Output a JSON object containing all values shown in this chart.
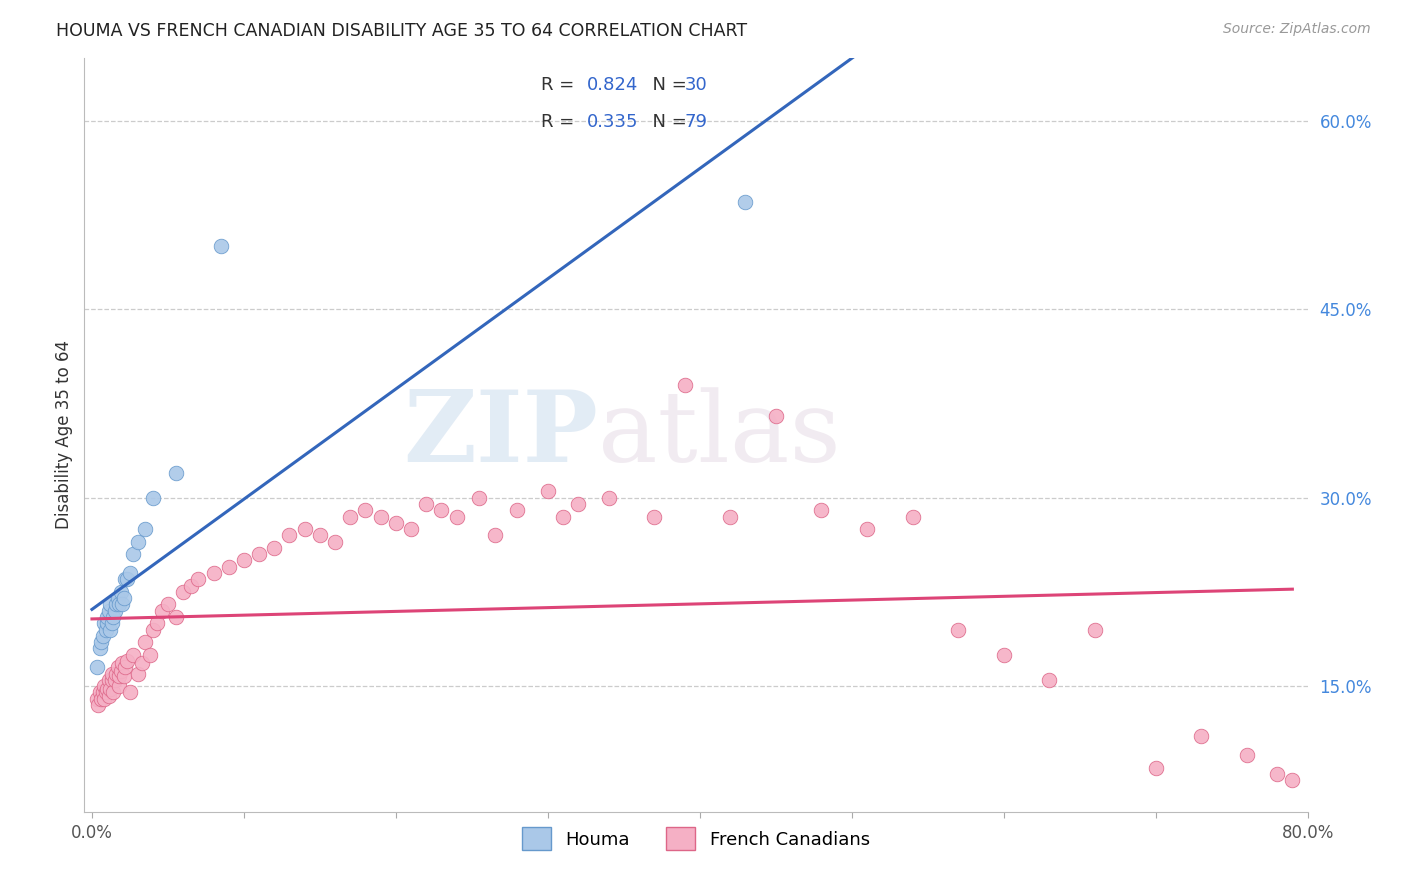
{
  "title": "HOUMA VS FRENCH CANADIAN DISABILITY AGE 35 TO 64 CORRELATION CHART",
  "source": "Source: ZipAtlas.com",
  "ylabel": "Disability Age 35 to 64",
  "xlim": [
    -0.005,
    0.8
  ],
  "ylim": [
    0.05,
    0.65
  ],
  "yticks_right": [
    0.15,
    0.3,
    0.45,
    0.6
  ],
  "ytick_labels_right": [
    "15.0%",
    "30.0%",
    "45.0%",
    "60.0%"
  ],
  "houma_R": 0.824,
  "houma_N": 30,
  "fc_R": 0.335,
  "fc_N": 79,
  "houma_color": "#aac8e8",
  "houma_edge_color": "#6699cc",
  "houma_line_color": "#3366bb",
  "fc_color": "#f5b0c5",
  "fc_edge_color": "#dd6688",
  "fc_line_color": "#dd4477",
  "legend_label_houma": "Houma",
  "legend_label_fc": "French Canadians",
  "watermark_zip": "ZIP",
  "watermark_atlas": "atlas",
  "r_color": "#3366cc",
  "text_color": "#333333",
  "houma_x": [
    0.003,
    0.005,
    0.006,
    0.007,
    0.008,
    0.009,
    0.01,
    0.01,
    0.011,
    0.012,
    0.012,
    0.013,
    0.014,
    0.015,
    0.016,
    0.017,
    0.018,
    0.019,
    0.02,
    0.021,
    0.022,
    0.023,
    0.025,
    0.027,
    0.03,
    0.035,
    0.04,
    0.055,
    0.085,
    0.43
  ],
  "houma_y": [
    0.165,
    0.18,
    0.185,
    0.19,
    0.2,
    0.195,
    0.2,
    0.205,
    0.21,
    0.215,
    0.195,
    0.2,
    0.205,
    0.21,
    0.215,
    0.22,
    0.215,
    0.225,
    0.215,
    0.22,
    0.235,
    0.235,
    0.24,
    0.255,
    0.265,
    0.275,
    0.3,
    0.32,
    0.5,
    0.535
  ],
  "fc_x": [
    0.003,
    0.004,
    0.005,
    0.006,
    0.007,
    0.008,
    0.008,
    0.009,
    0.01,
    0.011,
    0.011,
    0.012,
    0.013,
    0.013,
    0.014,
    0.015,
    0.016,
    0.017,
    0.018,
    0.018,
    0.019,
    0.02,
    0.021,
    0.022,
    0.023,
    0.025,
    0.027,
    0.03,
    0.033,
    0.035,
    0.038,
    0.04,
    0.043,
    0.046,
    0.05,
    0.055,
    0.06,
    0.065,
    0.07,
    0.08,
    0.09,
    0.1,
    0.11,
    0.12,
    0.13,
    0.14,
    0.15,
    0.16,
    0.17,
    0.18,
    0.19,
    0.2,
    0.21,
    0.22,
    0.23,
    0.24,
    0.255,
    0.265,
    0.28,
    0.3,
    0.31,
    0.32,
    0.34,
    0.37,
    0.39,
    0.42,
    0.45,
    0.48,
    0.51,
    0.54,
    0.57,
    0.6,
    0.63,
    0.66,
    0.7,
    0.73,
    0.76,
    0.78,
    0.79
  ],
  "fc_y": [
    0.14,
    0.135,
    0.145,
    0.14,
    0.145,
    0.14,
    0.15,
    0.145,
    0.148,
    0.142,
    0.155,
    0.148,
    0.155,
    0.16,
    0.145,
    0.155,
    0.16,
    0.165,
    0.15,
    0.158,
    0.162,
    0.168,
    0.158,
    0.165,
    0.17,
    0.145,
    0.175,
    0.16,
    0.168,
    0.185,
    0.175,
    0.195,
    0.2,
    0.21,
    0.215,
    0.205,
    0.225,
    0.23,
    0.235,
    0.24,
    0.245,
    0.25,
    0.255,
    0.26,
    0.27,
    0.275,
    0.27,
    0.265,
    0.285,
    0.29,
    0.285,
    0.28,
    0.275,
    0.295,
    0.29,
    0.285,
    0.3,
    0.27,
    0.29,
    0.305,
    0.285,
    0.295,
    0.3,
    0.285,
    0.39,
    0.285,
    0.365,
    0.29,
    0.275,
    0.285,
    0.195,
    0.175,
    0.155,
    0.195,
    0.085,
    0.11,
    0.095,
    0.08,
    0.075
  ]
}
